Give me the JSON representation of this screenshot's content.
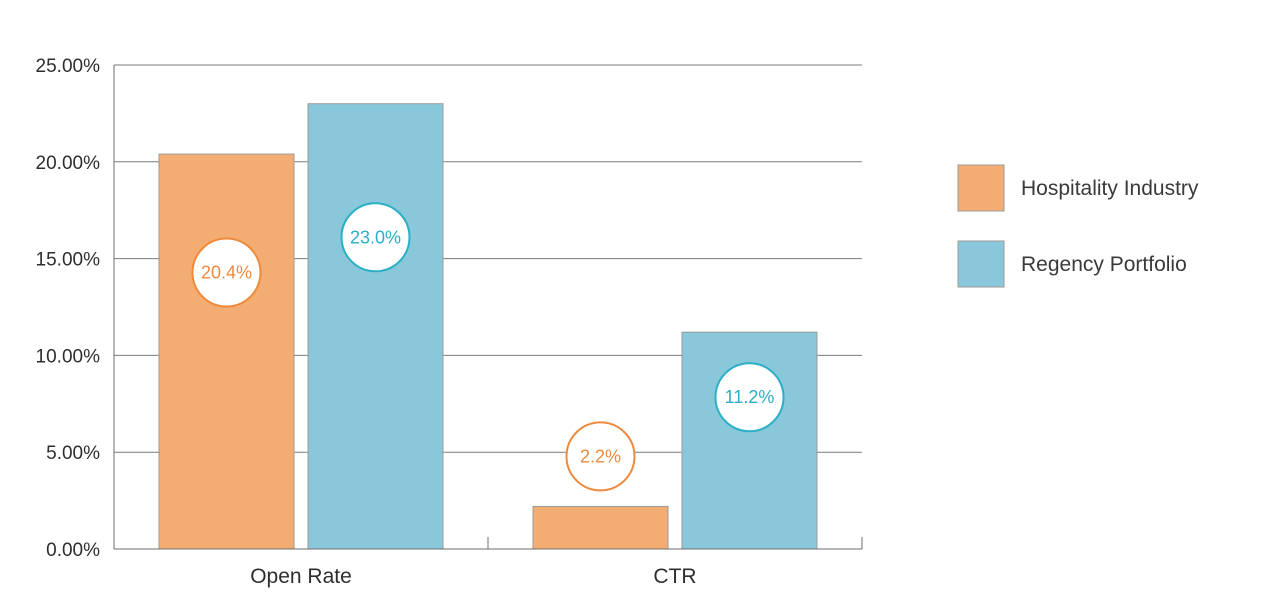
{
  "chart_data": {
    "type": "bar",
    "title": "",
    "xlabel": "",
    "ylabel": "",
    "categories": [
      "Open Rate",
      "CTR"
    ],
    "series": [
      {
        "name": "Hospitality Industry",
        "values": [
          20.4,
          2.2
        ],
        "data_labels": [
          "20.4%",
          "2.2%"
        ],
        "color": "#f3ad72",
        "label_color": "#ee8a3c"
      },
      {
        "name": "Regency Portfolio",
        "values": [
          23.0,
          11.2
        ],
        "data_labels": [
          "23.0%",
          "11.2%"
        ],
        "color": "#89c8da",
        "label_color": "#2bafc6"
      }
    ],
    "ylim": [
      0,
      25
    ],
    "y_ticks": [
      0,
      5,
      10,
      15,
      20,
      25
    ],
    "y_tick_labels": [
      "0.00%",
      "5.00%",
      "10.00%",
      "15.00%",
      "20.00%",
      "25.00%"
    ],
    "grid": true,
    "legend_position": "right"
  }
}
